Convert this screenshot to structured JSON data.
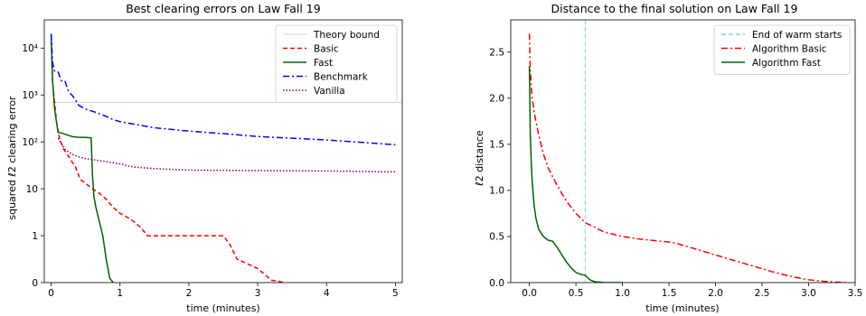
{
  "chart_data": [
    {
      "type": "line",
      "title": "Best clearing errors on Law Fall 19",
      "xlabel": "time (minutes)",
      "ylabel": "squared ℓ2 clearing error",
      "xlim": [
        -0.1,
        5.1
      ],
      "yscale": "symlog",
      "x_ticks": [
        0,
        1,
        2,
        3,
        4,
        5
      ],
      "y_ticks": [
        {
          "value": 0,
          "label": "0"
        },
        {
          "value": 1,
          "label": "1"
        },
        {
          "value": 10,
          "label": "10"
        },
        {
          "value": 100,
          "label": "10²"
        },
        {
          "value": 1000,
          "label": "10³"
        },
        {
          "value": 10000,
          "label": "10⁴"
        }
      ],
      "grid": false,
      "legend_position": "top-right",
      "series": [
        {
          "name": "Theory bound",
          "color": "#c8c8c8",
          "dash": "solid",
          "x": [
            0,
            5.1
          ],
          "y": [
            700,
            700
          ]
        },
        {
          "name": "Basic",
          "color": "#ff0000",
          "dash": "dashed",
          "x": [
            0,
            0.02,
            0.05,
            0.08,
            0.12,
            0.18,
            0.25,
            0.3,
            0.35,
            0.42,
            0.5,
            0.6,
            0.7,
            0.8,
            0.9,
            1.0,
            1.1,
            1.2,
            1.3,
            1.4,
            1.5,
            2.0,
            2.5,
            2.6,
            2.7,
            3.0,
            3.2,
            3.4
          ],
          "y": [
            20000,
            2000,
            700,
            250,
            120,
            70,
            50,
            38,
            30,
            16,
            13,
            10,
            8,
            6,
            4,
            3,
            2.5,
            2,
            1.5,
            1,
            1,
            1,
            1,
            0.8,
            0.5,
            0.3,
            0.05,
            0
          ]
        },
        {
          "name": "Fast",
          "color": "#006400",
          "dash": "solid",
          "x": [
            0,
            0.02,
            0.05,
            0.08,
            0.1,
            0.15,
            0.3,
            0.4,
            0.5,
            0.58,
            0.6,
            0.62,
            0.65,
            0.7,
            0.75,
            0.8,
            0.85,
            0.9
          ],
          "y": [
            20000,
            2000,
            500,
            250,
            160,
            155,
            130,
            125,
            125,
            122,
            20,
            7,
            4,
            2,
            1,
            0.5,
            0.1,
            0
          ]
        },
        {
          "name": "Benchmark",
          "color": "#0000ff",
          "dash": "dashdot",
          "x": [
            0,
            0.02,
            0.05,
            0.1,
            0.15,
            0.2,
            0.25,
            0.3,
            0.35,
            0.4,
            0.45,
            0.5,
            0.6,
            0.7,
            0.8,
            0.9,
            1.0,
            1.5,
            2.0,
            2.5,
            3.0,
            4.0,
            5.0
          ],
          "y": [
            20000,
            5000,
            3200,
            3100,
            2000,
            2000,
            1200,
            1000,
            800,
            600,
            550,
            500,
            450,
            400,
            350,
            300,
            270,
            200,
            170,
            150,
            130,
            110,
            87
          ]
        },
        {
          "name": "Vanilla",
          "color": "#800080",
          "dash": "dotted",
          "x": [
            0.1,
            0.2,
            0.3,
            0.4,
            0.5,
            0.6,
            0.8,
            1.0,
            1.2,
            1.5,
            2.0,
            3.0,
            4.0,
            5.0
          ],
          "y": [
            120,
            70,
            55,
            48,
            44,
            42,
            38,
            34,
            29,
            27,
            25,
            24.5,
            24,
            23
          ]
        }
      ]
    },
    {
      "type": "line",
      "title": "Distance to the final solution on Law Fall 19",
      "xlabel": "time (minutes)",
      "ylabel": "ℓ2 distance",
      "xlim": [
        -0.2,
        3.5
      ],
      "ylim": [
        0,
        2.85
      ],
      "x_ticks": [
        0.0,
        0.5,
        1.0,
        1.5,
        2.0,
        2.5,
        3.0,
        3.5
      ],
      "y_ticks": [
        0.0,
        0.5,
        1.0,
        1.5,
        2.0,
        2.5
      ],
      "tick_decimals": 1,
      "grid": false,
      "legend_position": "top-right",
      "vline": {
        "name": "End of warm starts",
        "x": 0.6,
        "color": "#87ceeb",
        "dash": "dashed"
      },
      "series": [
        {
          "name": "Algorithm Basic",
          "color": "#ff0000",
          "dash": "dashdot",
          "x": [
            0,
            0.01,
            0.03,
            0.06,
            0.1,
            0.15,
            0.2,
            0.3,
            0.4,
            0.5,
            0.6,
            0.8,
            1.0,
            1.2,
            1.4,
            1.5,
            1.6,
            1.8,
            2.0,
            2.2,
            2.4,
            2.6,
            2.8,
            3.0,
            3.2,
            3.4
          ],
          "y": [
            2.7,
            2.3,
            2.0,
            1.8,
            1.6,
            1.4,
            1.25,
            1.05,
            0.88,
            0.75,
            0.65,
            0.55,
            0.5,
            0.47,
            0.45,
            0.44,
            0.42,
            0.36,
            0.3,
            0.24,
            0.18,
            0.12,
            0.07,
            0.03,
            0.01,
            0
          ]
        },
        {
          "name": "Algorithm Fast",
          "color": "#006400",
          "dash": "solid",
          "x": [
            0,
            0.005,
            0.01,
            0.02,
            0.03,
            0.05,
            0.07,
            0.1,
            0.15,
            0.2,
            0.25,
            0.3,
            0.35,
            0.4,
            0.45,
            0.5,
            0.55,
            0.6,
            0.65,
            0.7,
            0.8,
            0.9,
            1.0
          ],
          "y": [
            2.35,
            2.0,
            1.6,
            1.3,
            1.1,
            0.85,
            0.7,
            0.58,
            0.5,
            0.46,
            0.45,
            0.38,
            0.3,
            0.22,
            0.16,
            0.11,
            0.09,
            0.08,
            0.03,
            0.01,
            0,
            0,
            0
          ]
        }
      ]
    }
  ]
}
